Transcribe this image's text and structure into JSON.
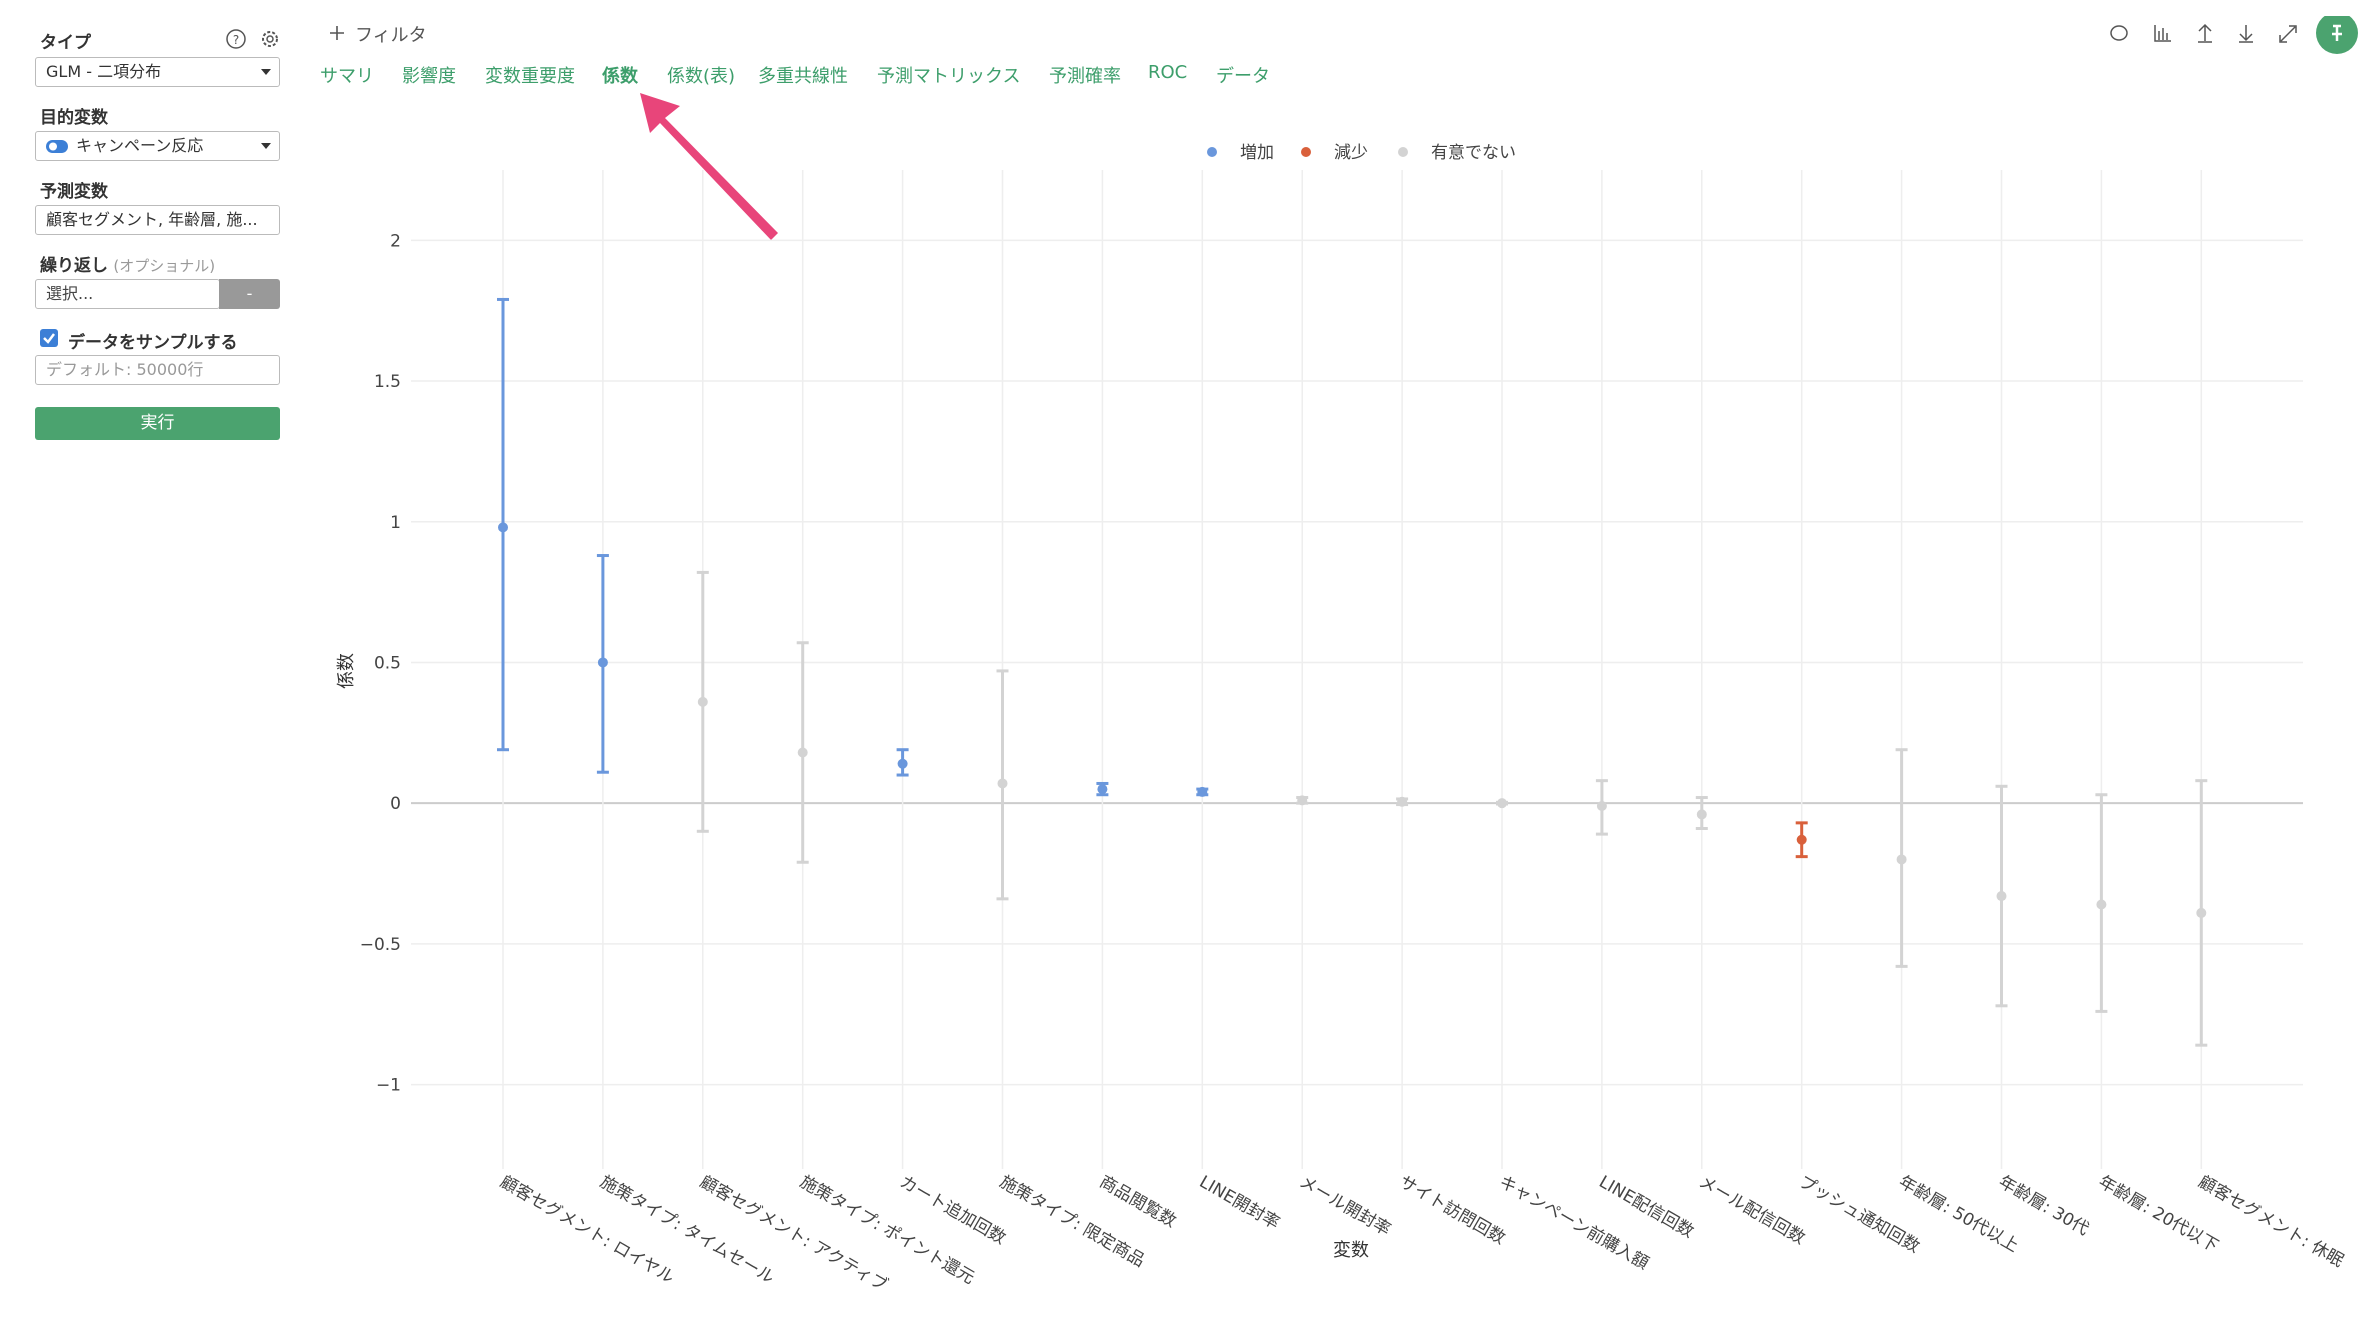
{
  "sidebar": {
    "type_label": "タイプ",
    "type_value": "GLM - 二項分布",
    "target_label": "目的変数",
    "target_value": "キャンペーン反応",
    "predictors_label": "予測変数",
    "predictors_value": "顧客セグメント, 年齢層, 施...",
    "repeat_label": "繰り返し",
    "repeat_optional": "(オプショナル)",
    "repeat_placeholder": "選択...",
    "repeat_button": "-",
    "sample_label": "データをサンプルする",
    "sample_placeholder": "デフォルト: 50000行",
    "run_button": "実行"
  },
  "toolbar": {
    "filter": "フィルタ"
  },
  "tabs": [
    {
      "label": "サマリ"
    },
    {
      "label": "影響度"
    },
    {
      "label": "変数重要度"
    },
    {
      "label": "係数",
      "active": true
    },
    {
      "label": "係数(表)"
    },
    {
      "label": "多重共線性"
    },
    {
      "label": "予測マトリックス"
    },
    {
      "label": "予測確率"
    },
    {
      "label": "ROC"
    },
    {
      "label": "データ"
    }
  ],
  "chart_data": {
    "type": "errorbar",
    "x_label": "変数",
    "y_label": "係数",
    "categories": [
      "顧客セグメント: ロイヤル",
      "施策タイプ: タイムセール",
      "顧客セグメント: アクティブ",
      "施策タイプ: ポイント還元",
      "カート追加回数",
      "施策タイプ: 限定商品",
      "商品閲覧数",
      "LINE開封率",
      "メール開封率",
      "サイト訪問回数",
      "キャンペーン前購入額",
      "LINE配信回数",
      "メール配信回数",
      "プッシュ通知回数",
      "年齢層: 50代以上",
      "年齢層: 30代",
      "年齢層: 20代以下",
      "顧客セグメント: 休眠"
    ],
    "series": [
      {
        "name": "増加",
        "color": "#6a97dc",
        "values": [
          0.98,
          0.5,
          null,
          null,
          0.14,
          null,
          0.05,
          0.04,
          null,
          null,
          null,
          null,
          null,
          null,
          null,
          null,
          null,
          null
        ],
        "lower": [
          0.19,
          0.11,
          null,
          null,
          0.1,
          null,
          0.03,
          0.03,
          null,
          null,
          null,
          null,
          null,
          null,
          null,
          null,
          null,
          null
        ],
        "upper": [
          1.79,
          0.88,
          null,
          null,
          0.19,
          null,
          0.07,
          0.05,
          null,
          null,
          null,
          null,
          null,
          null,
          null,
          null,
          null,
          null
        ]
      },
      {
        "name": "減少",
        "color": "#d9603b",
        "values": [
          null,
          null,
          null,
          null,
          null,
          null,
          null,
          null,
          null,
          null,
          null,
          null,
          null,
          -0.13,
          null,
          null,
          null,
          null
        ],
        "lower": [
          null,
          null,
          null,
          null,
          null,
          null,
          null,
          null,
          null,
          null,
          null,
          null,
          null,
          -0.19,
          null,
          null,
          null,
          null
        ],
        "upper": [
          null,
          null,
          null,
          null,
          null,
          null,
          null,
          null,
          null,
          null,
          null,
          null,
          null,
          -0.07,
          null,
          null,
          null,
          null
        ]
      },
      {
        "name": "有意でない",
        "color": "#d3d3d3",
        "values": [
          null,
          null,
          0.36,
          0.18,
          null,
          0.07,
          null,
          null,
          0.01,
          0.005,
          0,
          -0.01,
          -0.04,
          null,
          -0.2,
          -0.33,
          -0.36,
          -0.39
        ],
        "lower": [
          null,
          null,
          -0.1,
          -0.21,
          null,
          -0.34,
          null,
          null,
          0,
          -0.005,
          -0.003,
          -0.11,
          -0.09,
          null,
          -0.58,
          -0.72,
          -0.74,
          -0.86
        ],
        "upper": [
          null,
          null,
          0.82,
          0.57,
          null,
          0.47,
          null,
          null,
          0.02,
          0.015,
          0.003,
          0.08,
          0.02,
          null,
          0.19,
          0.06,
          0.03,
          0.08
        ]
      }
    ],
    "ylim": [
      -1.3,
      2.25
    ],
    "yticks": [
      {
        "value": -1,
        "label": "−1"
      },
      {
        "value": -0.5,
        "label": "−0.5"
      },
      0,
      0.5,
      1,
      1.5,
      2
    ],
    "grid": true,
    "legend": "top"
  }
}
